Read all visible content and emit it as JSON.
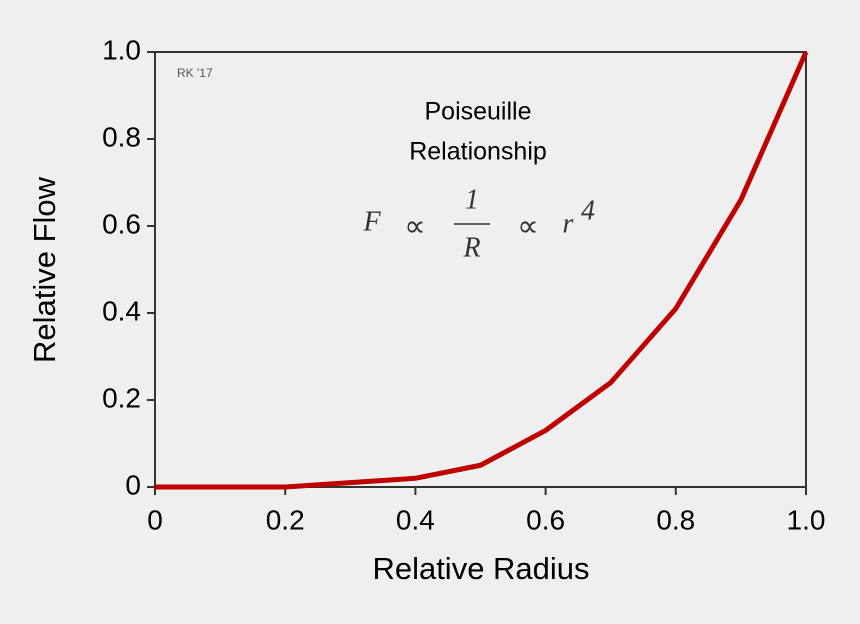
{
  "chart_data": {
    "type": "line",
    "title_lines": [
      "Poiseuille",
      "Relationship"
    ],
    "formula": {
      "left": "F",
      "symbol": "∝",
      "numerator": "1",
      "denominator": "R",
      "right": "r",
      "exponent": "4"
    },
    "credit": "RK '17",
    "xlabel": "Relative Radius",
    "ylabel": "Relative Flow",
    "x": [
      0,
      0.1,
      0.2,
      0.3,
      0.4,
      0.5,
      0.6,
      0.7,
      0.8,
      0.9,
      1.0
    ],
    "series": [
      {
        "name": "Relative Flow",
        "color": "#c00000",
        "values": [
          0,
          0,
          0,
          0.01,
          0.02,
          0.05,
          0.13,
          0.24,
          0.41,
          0.66,
          1.0
        ]
      }
    ],
    "xlim": [
      0,
      1
    ],
    "ylim": [
      0,
      1
    ],
    "xticks": [
      0,
      0.2,
      0.4,
      0.6,
      0.8,
      {
        "value": 1,
        "label": "1.0"
      }
    ],
    "yticks": [
      0,
      0.2,
      0.4,
      0.6,
      0.8,
      {
        "value": 1,
        "label": "1.0"
      }
    ],
    "grid": false
  }
}
